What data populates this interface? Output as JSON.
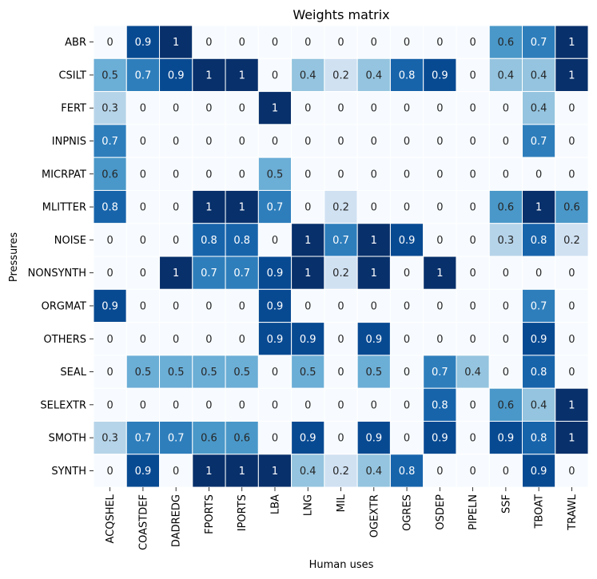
{
  "chart_data": {
    "type": "heatmap",
    "title": "Weights matrix",
    "xlabel": "Human uses",
    "ylabel": "Pressures",
    "colormap": "Blues",
    "vmin": 0,
    "vmax": 1,
    "colorbar": false,
    "cell_borders": "#ffffff",
    "x_categories": [
      "ACQSHEL",
      "COASTDEF",
      "DADREDG",
      "FPORTS",
      "IPORTS",
      "LBA",
      "LNG",
      "MIL",
      "OGEXTR",
      "OGRES",
      "OSDEP",
      "PIPELN",
      "SSF",
      "TBOAT",
      "TRAWL"
    ],
    "y_categories": [
      "ABR",
      "CSILT",
      "FERT",
      "INPNIS",
      "MICRPAT",
      "MLITTER",
      "NOISE",
      "NONSYNTH",
      "ORGMAT",
      "OTHERS",
      "SEAL",
      "SELEXTR",
      "SMOTH",
      "SYNTH"
    ],
    "values": [
      [
        0,
        0.9,
        1,
        0,
        0,
        0,
        0,
        0,
        0,
        0,
        0,
        0,
        0.6,
        0.7,
        1
      ],
      [
        0.5,
        0.7,
        0.9,
        1,
        1,
        0,
        0.4,
        0.2,
        0.4,
        0.8,
        0.9,
        0,
        0.4,
        0.4,
        1
      ],
      [
        0.3,
        0,
        0,
        0,
        0,
        1,
        0,
        0,
        0,
        0,
        0,
        0,
        0,
        0.4,
        0
      ],
      [
        0.7,
        0,
        0,
        0,
        0,
        0,
        0,
        0,
        0,
        0,
        0,
        0,
        0,
        0.7,
        0
      ],
      [
        0.6,
        0,
        0,
        0,
        0,
        0.5,
        0,
        0,
        0,
        0,
        0,
        0,
        0,
        0,
        0
      ],
      [
        0.8,
        0,
        0,
        1,
        1,
        0.7,
        0,
        0.2,
        0,
        0,
        0,
        0,
        0.6,
        1,
        0.6
      ],
      [
        0,
        0,
        0,
        0.8,
        0.8,
        0,
        1,
        0.7,
        1,
        0.9,
        0,
        0,
        0.3,
        0.8,
        0.2
      ],
      [
        0,
        0,
        1,
        0.7,
        0.7,
        0.9,
        1,
        0.2,
        1,
        0,
        1,
        0,
        0,
        0,
        0
      ],
      [
        0.9,
        0,
        0,
        0,
        0,
        0.9,
        0,
        0,
        0,
        0,
        0,
        0,
        0,
        0.7,
        0
      ],
      [
        0,
        0,
        0,
        0,
        0,
        0.9,
        0.9,
        0,
        0.9,
        0,
        0,
        0,
        0,
        0.9,
        0
      ],
      [
        0,
        0.5,
        0.5,
        0.5,
        0.5,
        0,
        0.5,
        0,
        0.5,
        0,
        0.7,
        0.4,
        0,
        0.8,
        0
      ],
      [
        0,
        0,
        0,
        0,
        0,
        0,
        0,
        0,
        0,
        0,
        0.8,
        0,
        0.6,
        0.4,
        1
      ],
      [
        0.3,
        0.7,
        0.7,
        0.6,
        0.6,
        0,
        0.9,
        0,
        0.9,
        0,
        0.9,
        0,
        0.9,
        0.8,
        1
      ],
      [
        0,
        0.9,
        0,
        1,
        1,
        1,
        0.4,
        0.2,
        0.4,
        0.8,
        0,
        0,
        0,
        0.9,
        0
      ]
    ]
  }
}
